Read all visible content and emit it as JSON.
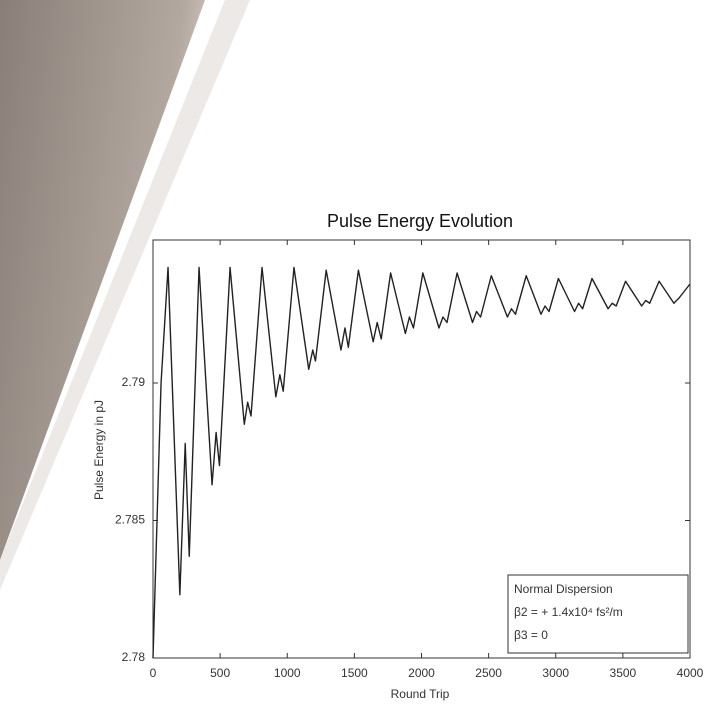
{
  "chart_data": {
    "type": "line",
    "title": "Pulse Energy Evolution",
    "xlabel": "Round Trip",
    "ylabel": "Pulse Energy in pJ",
    "x": [
      0,
      60,
      112,
      200,
      240,
      270,
      343,
      440,
      470,
      495,
      574,
      680,
      705,
      730,
      812,
      915,
      945,
      970,
      1050,
      1160,
      1190,
      1210,
      1290,
      1400,
      1430,
      1455,
      1530,
      1640,
      1670,
      1700,
      1770,
      1880,
      1910,
      1940,
      2010,
      2130,
      2160,
      2190,
      2265,
      2380,
      2410,
      2440,
      2520,
      2640,
      2670,
      2700,
      2780,
      2890,
      2920,
      2950,
      3020,
      3140,
      3170,
      3200,
      3270,
      3390,
      3420,
      3450,
      3520,
      3640,
      3670,
      3700,
      3770,
      3880,
      3920,
      4000
    ],
    "series": [
      {
        "name": "Pulse Energy",
        "color": "#222222",
        "values": [
          2.78,
          2.79,
          2.7942,
          2.7823,
          2.7878,
          2.7837,
          2.7942,
          2.7863,
          2.7882,
          2.787,
          2.7942,
          2.7885,
          2.7893,
          2.7888,
          2.7942,
          2.7895,
          2.7903,
          2.7897,
          2.7942,
          2.7905,
          2.7912,
          2.7908,
          2.7941,
          2.7912,
          2.792,
          2.7913,
          2.7941,
          2.7915,
          2.7922,
          2.7916,
          2.794,
          2.7918,
          2.7924,
          2.792,
          2.794,
          2.792,
          2.7924,
          2.7922,
          2.794,
          2.7922,
          2.7926,
          2.7924,
          2.7939,
          2.7924,
          2.7927,
          2.7925,
          2.7939,
          2.7925,
          2.7928,
          2.7926,
          2.7938,
          2.7926,
          2.7929,
          2.7927,
          2.7938,
          2.7927,
          2.7929,
          2.7928,
          2.7937,
          2.7928,
          2.793,
          2.7929,
          2.7937,
          2.7929,
          2.7931,
          2.7936
        ]
      }
    ],
    "xlim": [
      0,
      4000
    ],
    "xticks": [
      0,
      500,
      1000,
      1500,
      2000,
      2500,
      3000,
      3500,
      4000
    ],
    "ylim": [
      2.78,
      2.7952
    ],
    "yticks": [
      2.78,
      2.785,
      2.79
    ],
    "grid": false,
    "annotation": [
      "Normal Dispersion",
      "β2 = + 1.4x10⁴ fs²/m",
      "β3 = 0"
    ]
  }
}
